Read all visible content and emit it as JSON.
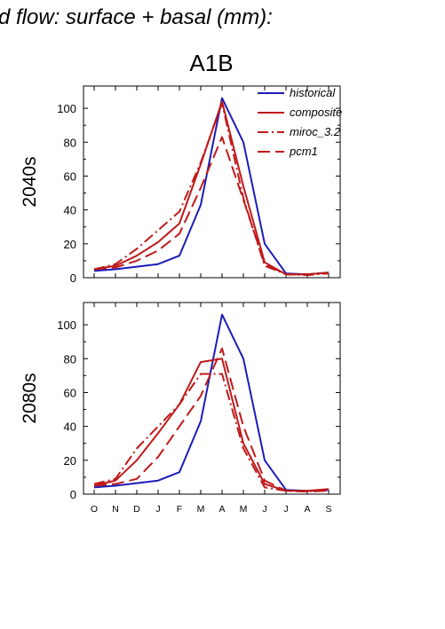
{
  "page": {
    "title": "d flow: surface + basal (mm):",
    "scenario": "A1B"
  },
  "colors": {
    "historical": "#1c1cb8",
    "projection": "#bf1a1a"
  },
  "chart_data": [
    {
      "type": "line",
      "row_label": "2040s",
      "categories": [
        "O",
        "N",
        "D",
        "J",
        "F",
        "M",
        "A",
        "M",
        "J",
        "J",
        "A",
        "S"
      ],
      "ylim": [
        0,
        110
      ],
      "yticks": [
        0,
        20,
        40,
        60,
        80,
        100
      ],
      "legend": "top-right",
      "series": [
        {
          "name": "historical",
          "style": "solid",
          "color": "#1c1cb8",
          "values": [
            4,
            5,
            6.5,
            8,
            13,
            43,
            106,
            80,
            20,
            2.5,
            2,
            3
          ]
        },
        {
          "name": "composite",
          "style": "solid",
          "color": "#bf1a1a",
          "values": [
            5,
            7,
            13,
            21,
            32,
            67,
            104,
            54,
            9,
            2,
            2,
            3
          ]
        },
        {
          "name": "miroc_3.2",
          "style": "dashdot",
          "color": "#bf1a1a",
          "values": [
            5,
            8,
            17,
            28,
            39,
            68,
            103,
            47,
            7,
            2,
            1.5,
            2.5
          ]
        },
        {
          "name": "pcm1",
          "style": "dashed",
          "color": "#bf1a1a",
          "values": [
            5,
            6,
            10,
            16,
            26,
            53,
            83,
            46,
            8,
            2,
            2,
            3
          ]
        }
      ]
    },
    {
      "type": "line",
      "row_label": "2080s",
      "categories": [
        "O",
        "N",
        "D",
        "J",
        "F",
        "M",
        "A",
        "M",
        "J",
        "J",
        "A",
        "S"
      ],
      "ylim": [
        0,
        110
      ],
      "yticks": [
        0,
        20,
        40,
        60,
        80,
        100
      ],
      "series": [
        {
          "style": "solid",
          "color": "#1c1cb8",
          "values": [
            4,
            5,
            6.5,
            8,
            13,
            43,
            106,
            80,
            20,
            2.5,
            2,
            2.5
          ]
        },
        {
          "style": "solid",
          "color": "#bf1a1a",
          "values": [
            5,
            8,
            20,
            36,
            53,
            78,
            80,
            30,
            6,
            2,
            2,
            3
          ]
        },
        {
          "style": "dashdot",
          "color": "#bf1a1a",
          "values": [
            6,
            9,
            27,
            40,
            53,
            71,
            71,
            27,
            4,
            2,
            1.5,
            2.5
          ]
        },
        {
          "style": "dashed",
          "color": "#bf1a1a",
          "values": [
            5,
            6,
            9,
            22,
            40,
            58,
            86,
            40,
            8,
            2,
            1.5,
            2
          ]
        }
      ]
    }
  ]
}
